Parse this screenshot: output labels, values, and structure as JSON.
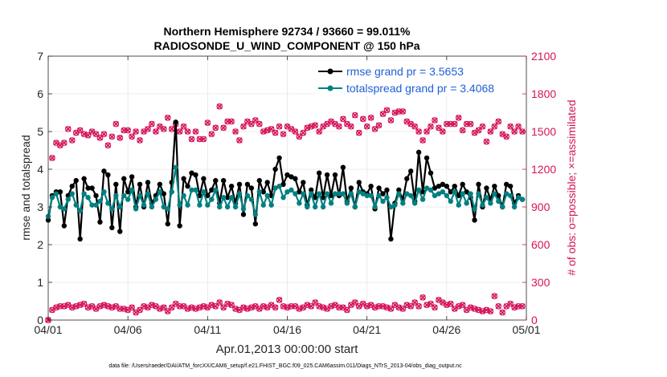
{
  "chart_data": {
    "type": "line",
    "title_line1": "Northern Hemisphere 92734 / 93660 = 99.011%",
    "title_line2": "RADIOSONDE_U_WIND_COMPONENT @ 150 hPa",
    "xlabel": "Apr.01,2013 00:00:00 start",
    "ylabel_left": "rmse and totalspread",
    "ylabel_right": "# of obs: o=possible; ×=assimilated",
    "footer": "data file: /Users/raeder/DAI/ATM_forcXX/CAM6_setup/f.e21.FHIST_BGC.f09_025.CAM6assim.011/Diags_NTrS_2013-04/obs_diag_output.nc",
    "xlim": [
      0,
      30
    ],
    "ylim_left": [
      0,
      7
    ],
    "ylim_right": [
      0,
      2100
    ],
    "x_ticks": [
      0,
      5,
      10,
      15,
      20,
      25,
      30
    ],
    "x_tick_labels": [
      "04/01",
      "04/06",
      "04/11",
      "04/16",
      "04/21",
      "04/26",
      "05/01"
    ],
    "y_left_ticks": [
      "0",
      "1",
      "2",
      "3",
      "4",
      "5",
      "6",
      "7"
    ],
    "y_right_ticks": [
      "0",
      "300",
      "600",
      "900",
      "1200",
      "1500",
      "1800",
      "2100"
    ],
    "grid": true,
    "legend_position": "top-right",
    "colors": {
      "rmse": "#000000",
      "spread": "#008080",
      "obs": "#d4145a",
      "axes": "#262626",
      "grid": "#e6e6e6"
    },
    "series": [
      {
        "name": "rmse grand pr = 3.5653",
        "axis": "left",
        "x": [
          0.0,
          0.25,
          0.5,
          0.75,
          1.0,
          1.25,
          1.5,
          1.75,
          2.0,
          2.25,
          2.5,
          2.75,
          3.0,
          3.25,
          3.5,
          3.75,
          4.0,
          4.25,
          4.5,
          4.75,
          5.0,
          5.25,
          5.5,
          5.75,
          6.0,
          6.25,
          6.5,
          6.75,
          7.0,
          7.25,
          7.5,
          7.75,
          8.0,
          8.25,
          8.5,
          8.75,
          9.0,
          9.25,
          9.5,
          9.75,
          10.0,
          10.25,
          10.5,
          10.75,
          11.0,
          11.25,
          11.5,
          11.75,
          12.0,
          12.25,
          12.5,
          12.75,
          13.0,
          13.25,
          13.5,
          13.75,
          14.0,
          14.25,
          14.5,
          14.75,
          15.0,
          15.25,
          15.5,
          15.75,
          16.0,
          16.25,
          16.5,
          16.75,
          17.0,
          17.25,
          17.5,
          17.75,
          18.0,
          18.25,
          18.5,
          18.75,
          19.0,
          19.25,
          19.5,
          19.75,
          20.0,
          20.25,
          20.5,
          20.75,
          21.0,
          21.25,
          21.5,
          21.75,
          22.0,
          22.25,
          22.5,
          22.75,
          23.0,
          23.25,
          23.5,
          23.75,
          24.0,
          24.25,
          24.5,
          24.75,
          25.0,
          25.25,
          25.5,
          25.75,
          26.0,
          26.25,
          26.5,
          26.75,
          27.0,
          27.25,
          27.5,
          27.75,
          28.0,
          28.25,
          28.5,
          28.75,
          29.0,
          29.25,
          29.5,
          29.75
        ],
        "values": [
          2.65,
          3.3,
          3.4,
          3.4,
          2.5,
          3.3,
          3.55,
          3.7,
          2.15,
          3.75,
          3.5,
          3.5,
          3.3,
          2.6,
          3.95,
          3.85,
          2.45,
          3.6,
          2.35,
          3.75,
          3.4,
          3.8,
          3.0,
          3.6,
          3.0,
          3.65,
          3.1,
          3.3,
          3.6,
          3.35,
          2.55,
          3.65,
          5.25,
          2.5,
          3.75,
          3.55,
          3.9,
          3.85,
          3.3,
          3.75,
          3.3,
          3.45,
          3.7,
          3.1,
          3.7,
          3.25,
          3.55,
          3.1,
          3.6,
          2.8,
          3.6,
          3.5,
          2.55,
          3.7,
          3.4,
          3.65,
          3.3,
          4.0,
          4.3,
          3.6,
          3.85,
          3.8,
          3.75,
          3.4,
          3.65,
          3.05,
          3.45,
          3.25,
          3.9,
          3.25,
          3.85,
          3.3,
          3.85,
          3.3,
          4.05,
          3.15,
          3.5,
          3.0,
          3.65,
          3.4,
          3.35,
          3.55,
          2.95,
          3.5,
          3.35,
          3.45,
          2.15,
          3.1,
          3.45,
          3.2,
          3.75,
          3.95,
          3.15,
          4.45,
          3.4,
          4.3,
          3.9,
          3.5,
          3.55,
          3.6,
          3.55,
          3.4,
          3.55,
          3.3,
          3.6,
          3.4,
          3.25,
          2.65,
          3.6,
          3.0,
          3.5,
          3.2,
          3.55,
          3.3,
          3.0,
          3.6,
          3.55,
          3.1,
          3.3,
          3.2
        ]
      },
      {
        "name": "totalspread grand pr = 3.4068",
        "axis": "left",
        "x": [
          0.0,
          0.25,
          0.5,
          0.75,
          1.0,
          1.25,
          1.5,
          1.75,
          2.0,
          2.25,
          2.5,
          2.75,
          3.0,
          3.25,
          3.5,
          3.75,
          4.0,
          4.25,
          4.5,
          4.75,
          5.0,
          5.25,
          5.5,
          5.75,
          6.0,
          6.25,
          6.5,
          6.75,
          7.0,
          7.25,
          7.5,
          7.75,
          8.0,
          8.25,
          8.5,
          8.75,
          9.0,
          9.25,
          9.5,
          9.75,
          10.0,
          10.25,
          10.5,
          10.75,
          11.0,
          11.25,
          11.5,
          11.75,
          12.0,
          12.25,
          12.5,
          12.75,
          13.0,
          13.25,
          13.5,
          13.75,
          14.0,
          14.25,
          14.5,
          14.75,
          15.0,
          15.25,
          15.5,
          15.75,
          16.0,
          16.25,
          16.5,
          16.75,
          17.0,
          17.25,
          17.5,
          17.75,
          18.0,
          18.25,
          18.5,
          18.75,
          19.0,
          19.25,
          19.5,
          19.75,
          20.0,
          20.25,
          20.5,
          20.75,
          21.0,
          21.25,
          21.5,
          21.75,
          22.0,
          22.25,
          22.5,
          22.75,
          23.0,
          23.25,
          23.5,
          23.75,
          24.0,
          24.25,
          24.5,
          24.75,
          25.0,
          25.25,
          25.5,
          25.75,
          26.0,
          26.25,
          26.5,
          26.75,
          27.0,
          27.25,
          27.5,
          27.75,
          28.0,
          28.25,
          28.5,
          28.75,
          29.0,
          29.25,
          29.5,
          29.75
        ],
        "values": [
          2.75,
          3.25,
          3.35,
          3.0,
          2.95,
          3.2,
          3.35,
          3.05,
          2.9,
          3.35,
          3.25,
          3.05,
          3.05,
          3.15,
          3.4,
          3.1,
          2.95,
          3.3,
          3.0,
          3.3,
          3.2,
          3.45,
          2.95,
          3.3,
          3.05,
          3.35,
          3.0,
          3.2,
          3.4,
          3.0,
          2.95,
          3.4,
          4.05,
          3.05,
          3.3,
          3.05,
          3.45,
          3.45,
          3.05,
          3.4,
          3.05,
          3.2,
          3.45,
          3.0,
          3.25,
          3.0,
          3.25,
          3.0,
          3.35,
          2.95,
          3.3,
          3.2,
          2.8,
          3.4,
          3.05,
          3.3,
          3.05,
          3.5,
          3.55,
          3.25,
          3.4,
          3.45,
          3.35,
          3.1,
          3.35,
          3.0,
          3.35,
          3.0,
          3.35,
          3.0,
          3.35,
          3.1,
          3.35,
          3.35,
          3.35,
          3.1,
          3.35,
          3.0,
          3.4,
          3.35,
          3.3,
          3.3,
          3.0,
          3.3,
          3.15,
          3.25,
          3.0,
          3.05,
          3.35,
          3.1,
          3.35,
          3.3,
          3.1,
          3.45,
          3.2,
          3.5,
          3.45,
          3.3,
          3.35,
          3.4,
          3.3,
          3.15,
          3.4,
          3.05,
          3.35,
          3.1,
          3.35,
          2.95,
          3.35,
          3.05,
          3.25,
          3.1,
          3.35,
          3.15,
          3.0,
          3.35,
          3.3,
          3.0,
          3.25,
          3.2
        ]
      },
      {
        "name": "obs possible",
        "axis": "right",
        "x": [
          0.0,
          0.25,
          0.5,
          0.75,
          1.0,
          1.25,
          1.5,
          1.75,
          2.0,
          2.25,
          2.5,
          2.75,
          3.0,
          3.25,
          3.5,
          3.75,
          4.0,
          4.25,
          4.5,
          4.75,
          5.0,
          5.25,
          5.5,
          5.75,
          6.0,
          6.25,
          6.5,
          6.75,
          7.0,
          7.25,
          7.5,
          7.75,
          8.0,
          8.25,
          8.5,
          8.75,
          9.0,
          9.25,
          9.5,
          9.75,
          10.0,
          10.25,
          10.5,
          10.75,
          11.0,
          11.25,
          11.5,
          11.75,
          12.0,
          12.25,
          12.5,
          12.75,
          13.0,
          13.25,
          13.5,
          13.75,
          14.0,
          14.25,
          14.5,
          14.75,
          15.0,
          15.25,
          15.5,
          15.75,
          16.0,
          16.25,
          16.5,
          16.75,
          17.0,
          17.25,
          17.5,
          17.75,
          18.0,
          18.25,
          18.5,
          18.75,
          19.0,
          19.25,
          19.5,
          19.75,
          20.0,
          20.25,
          20.5,
          20.75,
          21.0,
          21.25,
          21.5,
          21.75,
          22.0,
          22.25,
          22.5,
          22.75,
          23.0,
          23.25,
          23.5,
          23.75,
          24.0,
          24.25,
          24.5,
          24.75,
          25.0,
          25.25,
          25.5,
          25.75,
          26.0,
          26.25,
          26.5,
          26.75,
          27.0,
          27.25,
          27.5,
          27.75,
          28.0,
          28.25,
          28.5,
          28.75,
          29.0,
          29.25,
          29.5,
          29.75
        ],
        "values": [
          0,
          1290,
          1410,
          1390,
          1410,
          1520,
          1430,
          1490,
          1510,
          1480,
          1470,
          1500,
          1480,
          1450,
          1480,
          1390,
          1460,
          1560,
          1450,
          1510,
          1510,
          1460,
          1500,
          1430,
          1500,
          1520,
          1560,
          1500,
          1540,
          1520,
          1610,
          1520,
          1560,
          1500,
          1540,
          1500,
          1440,
          1500,
          1440,
          1440,
          1570,
          1480,
          1530,
          1700,
          1530,
          1580,
          1580,
          1500,
          1430,
          1540,
          1580,
          1560,
          1590,
          1560,
          1500,
          1510,
          1520,
          1490,
          1540,
          1480,
          1540,
          1520,
          1500,
          1460,
          1490,
          1530,
          1540,
          1550,
          1500,
          1540,
          1560,
          1580,
          1560,
          1540,
          1600,
          1560,
          1540,
          1630,
          1490,
          1600,
          1540,
          1610,
          1520,
          1550,
          1640,
          1670,
          1590,
          1650,
          1660,
          1660,
          1580,
          1560,
          1540,
          1500,
          1430,
          1500,
          1540,
          1590,
          1530,
          1500,
          1560,
          1560,
          1560,
          1610,
          1510,
          1560,
          1560,
          1490,
          1510,
          1540,
          1420,
          1500,
          1540,
          1580,
          1480,
          1460,
          1540,
          1500,
          1540,
          1500
        ]
      },
      {
        "name": "obs assimilated",
        "axis": "right",
        "x": [
          0.0,
          0.25,
          0.5,
          0.75,
          1.0,
          1.25,
          1.5,
          1.75,
          2.0,
          2.25,
          2.5,
          2.75,
          3.0,
          3.25,
          3.5,
          3.75,
          4.0,
          4.25,
          4.5,
          4.75,
          5.0,
          5.25,
          5.5,
          5.75,
          6.0,
          6.25,
          6.5,
          6.75,
          7.0,
          7.25,
          7.5,
          7.75,
          8.0,
          8.25,
          8.5,
          8.75,
          9.0,
          9.25,
          9.5,
          9.75,
          10.0,
          10.25,
          10.5,
          10.75,
          11.0,
          11.25,
          11.5,
          11.75,
          12.0,
          12.25,
          12.5,
          12.75,
          13.0,
          13.25,
          13.5,
          13.75,
          14.0,
          14.25,
          14.5,
          14.75,
          15.0,
          15.25,
          15.5,
          15.75,
          16.0,
          16.25,
          16.5,
          16.75,
          17.0,
          17.25,
          17.5,
          17.75,
          18.0,
          18.25,
          18.5,
          18.75,
          19.0,
          19.25,
          19.5,
          19.75,
          20.0,
          20.25,
          20.5,
          20.75,
          21.0,
          21.25,
          21.5,
          21.75,
          22.0,
          22.25,
          22.5,
          22.75,
          23.0,
          23.25,
          23.5,
          23.75,
          24.0,
          24.25,
          24.5,
          24.75,
          25.0,
          25.25,
          25.5,
          25.75,
          26.0,
          26.25,
          26.5,
          26.75,
          27.0,
          27.25,
          27.5,
          27.75,
          28.0,
          28.25,
          28.5,
          28.75,
          29.0,
          29.25,
          29.5,
          29.75
        ],
        "values": [
          0,
          80,
          100,
          110,
          110,
          120,
          100,
          110,
          120,
          130,
          100,
          110,
          90,
          110,
          120,
          110,
          100,
          110,
          90,
          90,
          80,
          100,
          60,
          80,
          110,
          100,
          120,
          110,
          90,
          100,
          70,
          100,
          130,
          110,
          110,
          90,
          100,
          90,
          100,
          110,
          100,
          120,
          110,
          140,
          100,
          130,
          120,
          90,
          80,
          100,
          90,
          100,
          110,
          90,
          110,
          100,
          120,
          100,
          160,
          110,
          100,
          110,
          110,
          90,
          100,
          120,
          110,
          140,
          110,
          100,
          90,
          110,
          120,
          100,
          100,
          80,
          120,
          140,
          110,
          130,
          110,
          120,
          100,
          110,
          110,
          100,
          90,
          120,
          100,
          90,
          120,
          110,
          140,
          110,
          180,
          120,
          130,
          100,
          160,
          140,
          120,
          130,
          90,
          110,
          120,
          80,
          100,
          90,
          80,
          70,
          80,
          70,
          190,
          110,
          60,
          110,
          130,
          100,
          110,
          110
        ]
      }
    ]
  }
}
